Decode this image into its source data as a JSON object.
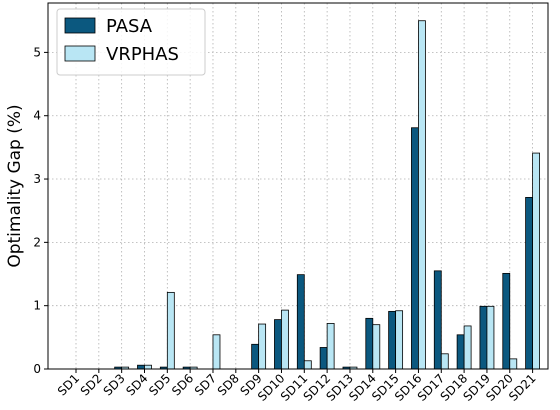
{
  "chart_data": {
    "type": "bar",
    "y_label": "Optimality Gap (%)",
    "categories": [
      "SD1",
      "SD2",
      "SD3",
      "SD4",
      "SD5",
      "SD6",
      "SD7",
      "SD8",
      "SD9",
      "SD10",
      "SD11",
      "SD12",
      "SD13",
      "SD14",
      "SD15",
      "SD16",
      "SD17",
      "SD18",
      "SD19",
      "SD20",
      "SD21"
    ],
    "series": [
      {
        "name": "PASA",
        "color": "#0b587f",
        "values": [
          0,
          0,
          0.03,
          0.06,
          0.03,
          0.03,
          0,
          0,
          0.39,
          0.78,
          1.49,
          0.34,
          0.03,
          0.8,
          0.91,
          3.81,
          1.55,
          0.54,
          0.99,
          1.51,
          2.71
        ]
      },
      {
        "name": "VRPHAS",
        "color": "#b9e6f4",
        "values": [
          0,
          0,
          0.03,
          0.06,
          1.21,
          0.03,
          0.54,
          0,
          0.71,
          0.93,
          0.13,
          0.72,
          0.03,
          0.7,
          0.92,
          5.5,
          0.24,
          0.68,
          0.99,
          0.16,
          3.41
        ]
      }
    ],
    "ylim": [
      0,
      5.78
    ],
    "yticks": [
      0,
      1,
      2,
      3,
      4,
      5
    ],
    "grid": true,
    "legend": "upper left"
  }
}
